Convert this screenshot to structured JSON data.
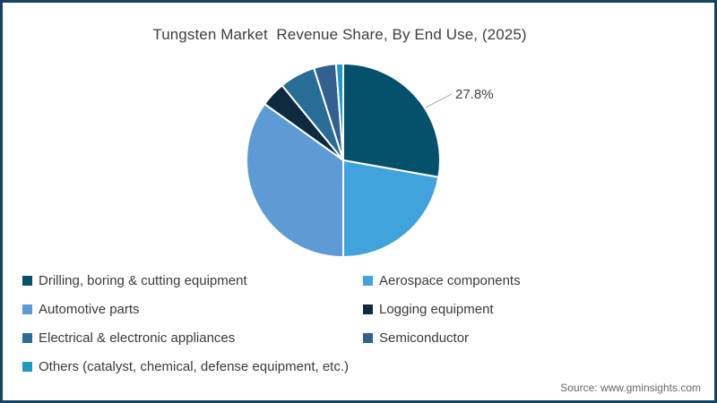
{
  "title": "Tungsten Market  Revenue Share, By End Use, (2025)",
  "source": "Source: www.gminsights.com",
  "frame": {
    "border_color": "#17425e",
    "background_color": "#ffffff"
  },
  "chart_data": {
    "type": "pie",
    "title": "Tungsten Market  Revenue Share, By End Use, (2025)",
    "categories": [
      "Drilling, boring & cutting equipment",
      "Aerospace components",
      "Automotive parts",
      "Logging equipment",
      "Electrical & electronic appliances",
      "Semiconductor",
      "Others (catalyst, chemical, defense equipment, etc.)"
    ],
    "values": [
      27.8,
      22.2,
      34.9,
      4.2,
      6.0,
      3.7,
      1.2
    ],
    "colors": [
      "#05506b",
      "#41a3dc",
      "#5e9ad4",
      "#0d2a3e",
      "#286d96",
      "#33608f",
      "#1e99c0"
    ],
    "start_angle_deg": 0,
    "direction": "clockwise",
    "slice_gap_color": "#ffffff",
    "data_label": {
      "text": "27.8%",
      "for_category": "Drilling, boring & cutting equipment",
      "color": "#404040",
      "leader_line_color": "#b0b0b0"
    },
    "legend_position": "bottom-two-columns",
    "legend_column_order": [
      [
        "Drilling, boring & cutting equipment",
        "Aerospace components"
      ],
      [
        "Automotive parts",
        "Logging equipment"
      ],
      [
        "Electrical & electronic appliances",
        "Semiconductor"
      ],
      [
        "Others (catalyst, chemical, defense equipment, etc.)"
      ]
    ]
  }
}
